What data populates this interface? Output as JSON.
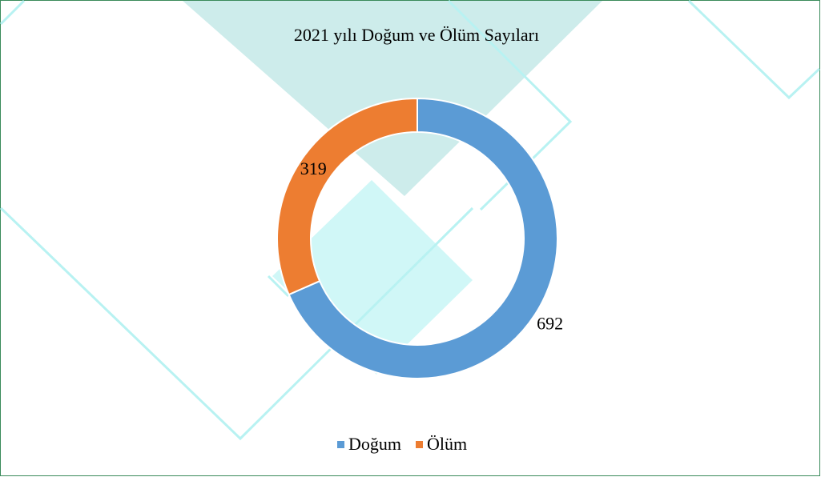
{
  "chart_data": {
    "type": "donut",
    "title": "2021 yılı Doğum ve Ölüm Sayıları",
    "categories": [
      "Doğum",
      "Ölüm"
    ],
    "values": [
      692,
      319
    ],
    "colors": [
      "#5b9bd5",
      "#ed7d31"
    ],
    "legend": "bottom"
  }
}
